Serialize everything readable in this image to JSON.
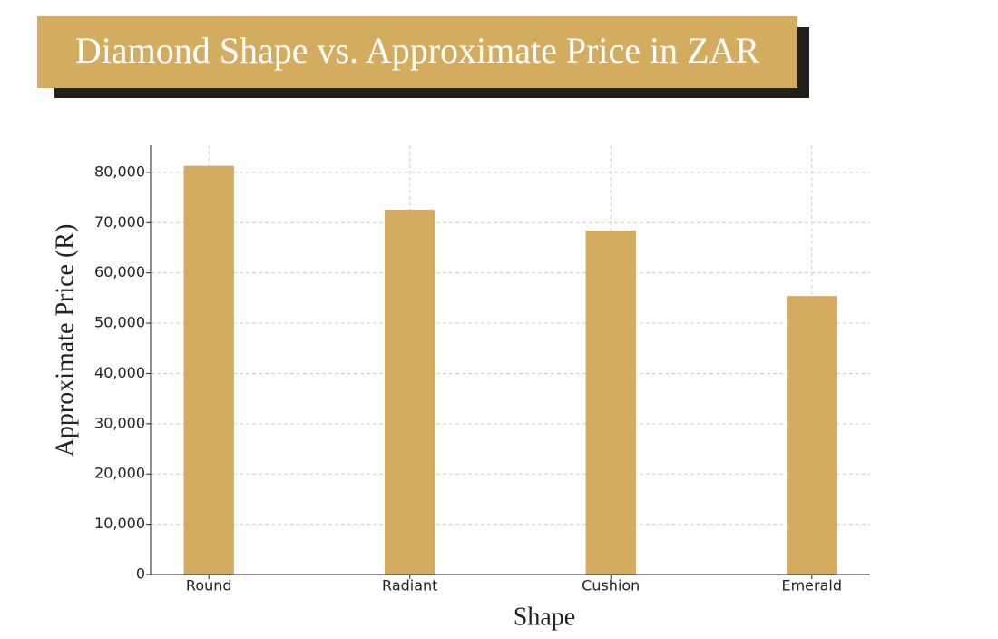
{
  "chart_data": {
    "type": "bar",
    "title": "Diamond Shape vs. Approximate Price in ZAR",
    "x_label": "Shape",
    "y_label": "Approximate Price (R)",
    "categories": [
      "Round",
      "Radiant",
      "Cushion",
      "Emerald"
    ],
    "values": [
      81300,
      72600,
      68400,
      55400
    ],
    "color": "#d4ac5f",
    "ylim": [
      0,
      85400
    ],
    "yticks": [
      0,
      {
        "value": 10000,
        "label": "10,000"
      },
      {
        "value": 20000,
        "label": "20,000"
      },
      {
        "value": 30000,
        "label": "30,000"
      },
      {
        "value": 40000,
        "label": "40,000"
      },
      {
        "value": 50000,
        "label": "50,000"
      },
      {
        "value": 60000,
        "label": "60,000"
      },
      {
        "value": 70000,
        "label": "70,000"
      },
      {
        "value": 80000,
        "label": "80,000"
      }
    ],
    "grid": true
  }
}
